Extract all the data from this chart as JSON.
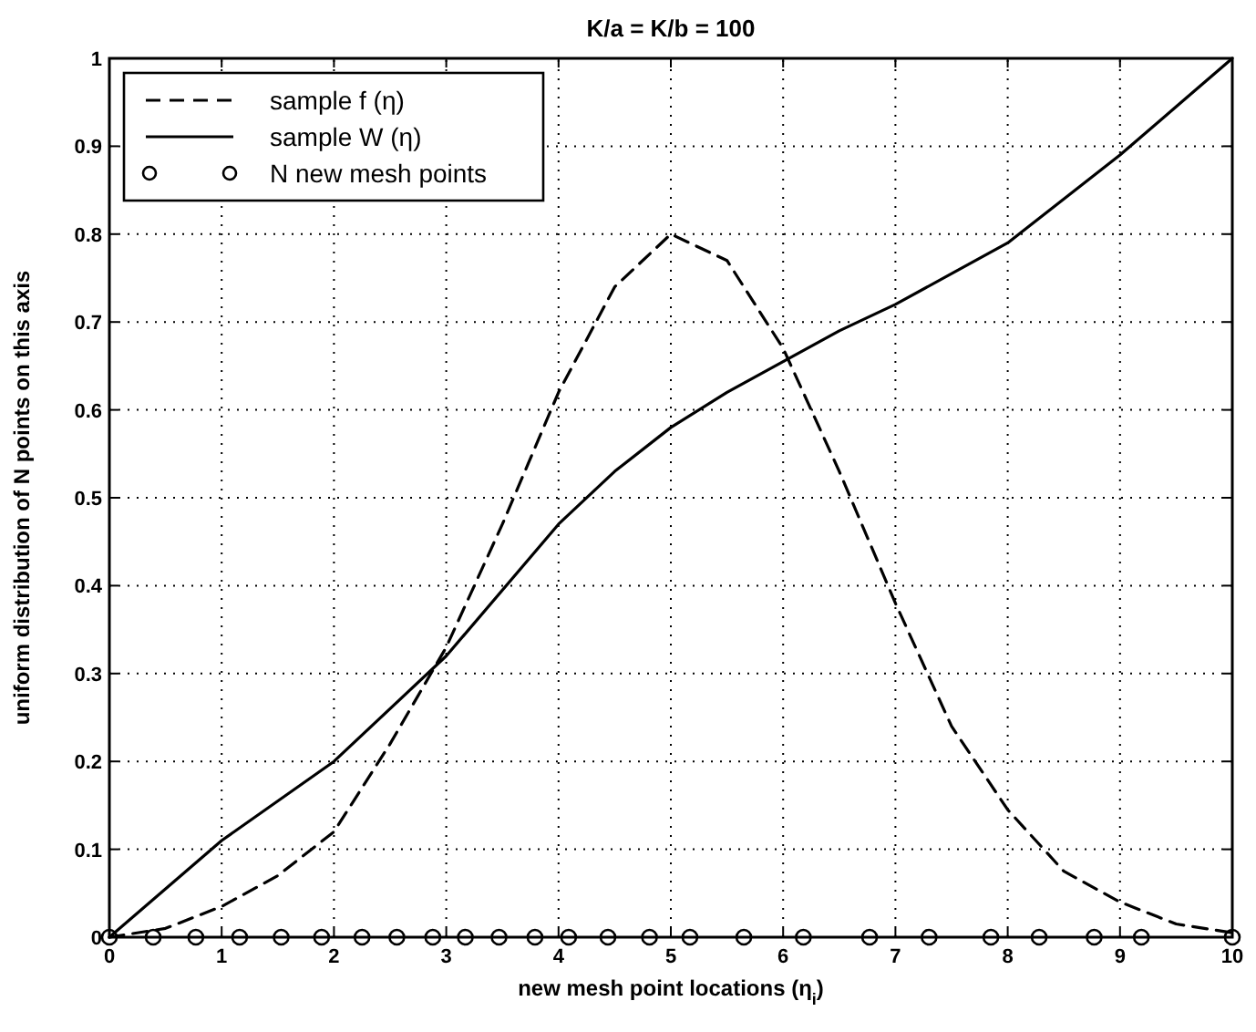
{
  "chart_data": {
    "type": "line",
    "title": "K/a = K/b = 100",
    "xlabel": "new mesh point locations (η$_{i}$)",
    "ylabel": "uniform distribution of N points on this axis",
    "xlim": [
      0,
      10
    ],
    "ylim": [
      0,
      1
    ],
    "xticks": [
      0,
      1,
      2,
      3,
      4,
      5,
      6,
      7,
      8,
      9,
      10
    ],
    "yticks": [
      0,
      0.1,
      0.2,
      0.3,
      0.4,
      0.5,
      0.6,
      0.7,
      0.8,
      0.9,
      1
    ],
    "grid": true,
    "legend": "top left",
    "series": [
      {
        "name": "sample f (η)",
        "type": "line",
        "line_style": "dashed",
        "marker": "none",
        "color": "#000000",
        "x": [
          0,
          0.5,
          1,
          1.5,
          2,
          2.5,
          3,
          3.5,
          4,
          4.5,
          5,
          5.5,
          6,
          6.5,
          7,
          7.5,
          8,
          8.5,
          9,
          9.5,
          10
        ],
        "values": [
          0,
          0.01,
          0.035,
          0.07,
          0.12,
          0.22,
          0.33,
          0.47,
          0.62,
          0.74,
          0.8,
          0.77,
          0.67,
          0.53,
          0.38,
          0.24,
          0.145,
          0.075,
          0.04,
          0.015,
          0.005
        ]
      },
      {
        "name": "sample W (η)",
        "type": "line",
        "line_style": "solid",
        "marker": "none",
        "color": "#000000",
        "x": [
          0,
          1,
          2,
          3,
          4,
          4.5,
          5,
          5.5,
          6,
          6.5,
          7,
          7.5,
          8,
          8.5,
          9,
          9.5,
          10
        ],
        "values": [
          0,
          0.11,
          0.2,
          0.32,
          0.47,
          0.53,
          0.58,
          0.62,
          0.655,
          0.69,
          0.72,
          0.755,
          0.79,
          0.84,
          0.89,
          0.945,
          1
        ]
      },
      {
        "name": "N new mesh points",
        "type": "scatter",
        "marker": "circle",
        "color": "#000000",
        "x": [
          0,
          0.39,
          0.77,
          1.16,
          1.53,
          1.89,
          2.25,
          2.56,
          2.88,
          3.17,
          3.47,
          3.79,
          4.09,
          4.44,
          4.81,
          5.17,
          5.65,
          6.18,
          6.77,
          7.3,
          7.85,
          8.28,
          8.77,
          9.19,
          10
        ],
        "values": [
          0,
          0,
          0,
          0,
          0,
          0,
          0,
          0,
          0,
          0,
          0,
          0,
          0,
          0,
          0,
          0,
          0,
          0,
          0,
          0,
          0,
          0,
          0,
          0,
          0
        ]
      }
    ]
  }
}
